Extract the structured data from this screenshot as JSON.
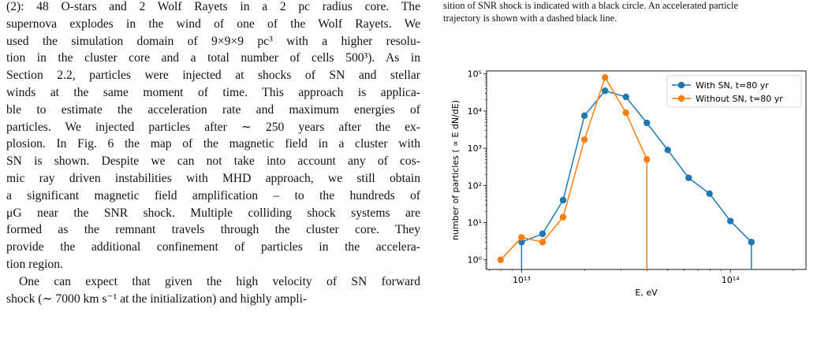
{
  "paper": {
    "body_lines": [
      "(2): 48 O-stars and 2 Wolf Rayets in a 2 pc radius core. The",
      "supernova explodes in the wind of one of the Wolf Rayets. We",
      "used the simulation domain of 9×9×9 pc³ with a higher resolu-",
      "tion in the cluster core and a total number of cells 500³). As in",
      "Section 2.2, particles were injected at shocks of SN and stellar",
      "winds at the same moment of time. This approach is applica-",
      "ble to estimate the acceleration rate and maximum energies of",
      "particles. We injected particles after ∼ 250 years after the ex-",
      "plosion. In Fig. 6 the map of the magnetic field in a cluster with",
      "SN is shown. Despite we can not take into account any of cos-",
      "mic ray driven instabilities with MHD approach, we still obtain",
      "a significant magnetic field amplification – to the hundreds of",
      "μG near the SNR shock. Multiple colliding shock systems are",
      "formed as the remnant travels through the cluster core. They",
      "provide the additional confinement of particles in the accelera-",
      "tion region.",
      "One can expect that given the high velocity of SN forward",
      "shock (∼ 7000 km s⁻¹ at the initialization) and highly ampli-"
    ],
    "caption_lines": [
      "sition of SNR shock is indicated with a black circle. An accelerated particle",
      "trajectory is shown with a dashed black line."
    ]
  },
  "chart_data": {
    "type": "line",
    "xlabel": "E, eV",
    "ylabel": "number of particles ( ∝ E dN/dE)",
    "xscale": "log",
    "yscale": "log",
    "xlim": [
      6800000000000.0,
      230000000000000.0
    ],
    "ylim": [
      0.55,
      120000
    ],
    "x_ticks": [
      {
        "value": 10000000000000.0,
        "label": "10¹³"
      },
      {
        "value": 100000000000000.0,
        "label": "10¹⁴"
      }
    ],
    "y_ticks": [
      {
        "value": 1,
        "label": "10⁰"
      },
      {
        "value": 10,
        "label": "10¹"
      },
      {
        "value": 100,
        "label": "10²"
      },
      {
        "value": 1000,
        "label": "10³"
      },
      {
        "value": 10000,
        "label": "10⁴"
      },
      {
        "value": 100000,
        "label": "10⁵"
      }
    ],
    "grid": false,
    "legend_position": "upper right",
    "series": [
      {
        "name": "With SN, t=80 yr",
        "color": "#1f77b4",
        "x": [
          10000000000000.0,
          12600000000000.0,
          15800000000000.0,
          20000000000000.0,
          25100000000000.0,
          31600000000000.0,
          39800000000000.0,
          50100000000000.0,
          63100000000000.0,
          79400000000000.0,
          100000000000000.0,
          126000000000000.0
        ],
        "y": [
          3,
          5,
          40,
          7500,
          35000,
          24000,
          4800,
          900,
          160,
          60,
          11,
          3
        ]
      },
      {
        "name": "Without SN, t=80 yr",
        "color": "#ff7f0e",
        "x": [
          7940000000000.0,
          10000000000000.0,
          12600000000000.0,
          15800000000000.0,
          20000000000000.0,
          25100000000000.0,
          31600000000000.0,
          39800000000000.0
        ],
        "y": [
          1,
          4,
          3,
          14,
          1700,
          80000,
          9000,
          500
        ]
      }
    ],
    "drop_lines": [
      {
        "x": 10000000000000.0,
        "from": 3,
        "color": "#1f77b4"
      },
      {
        "x": 126000000000000.0,
        "from": 3,
        "color": "#1f77b4"
      },
      {
        "x": 39800000000000.0,
        "from": 500,
        "color": "#ff7f0e"
      }
    ]
  }
}
